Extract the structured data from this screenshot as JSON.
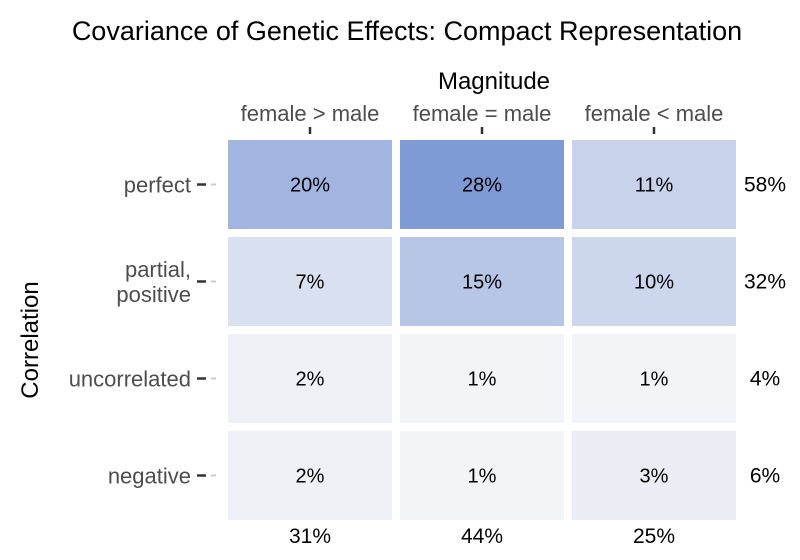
{
  "chart_data": {
    "type": "heatmap",
    "title": "Covariance of Genetic Effects: Compact Representation",
    "xlabel": "Magnitude",
    "ylabel": "Correlation",
    "x_categories": [
      "female > male",
      "female = male",
      "female < male"
    ],
    "y_categories": [
      "perfect",
      "partial,\npositive",
      "uncorrelated",
      "negative"
    ],
    "values": [
      [
        20,
        28,
        11
      ],
      [
        7,
        15,
        10
      ],
      [
        2,
        1,
        1
      ],
      [
        2,
        1,
        3
      ]
    ],
    "cell_labels": [
      [
        "20%",
        "28%",
        "11%"
      ],
      [
        "7%",
        "15%",
        "10%"
      ],
      [
        "2%",
        "1%",
        "1%"
      ],
      [
        "2%",
        "1%",
        "3%"
      ]
    ],
    "row_totals": [
      "58%",
      "32%",
      "4%",
      "6%"
    ],
    "column_totals": [
      "31%",
      "44%",
      "25%"
    ],
    "color_low": "#f7f7f8",
    "color_high": "#7f9bd6",
    "x_axis_position": "top",
    "grid": false
  }
}
